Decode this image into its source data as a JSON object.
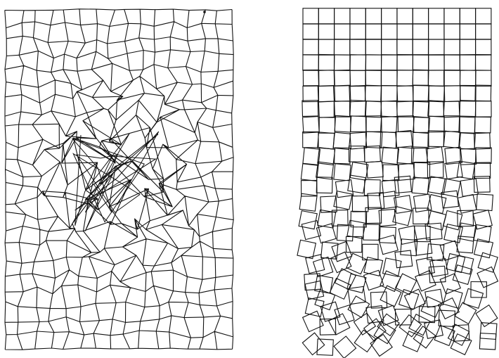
{
  "figure": {
    "background": "#ffffff",
    "ink": "#111111",
    "panels": [
      {
        "name": "distorted-quad-mesh",
        "cols": 15,
        "rows": 23,
        "stroke": "#111111"
      },
      {
        "name": "gravel-squares",
        "cols": 12,
        "rows": 22,
        "stroke": "#111111"
      }
    ]
  }
}
